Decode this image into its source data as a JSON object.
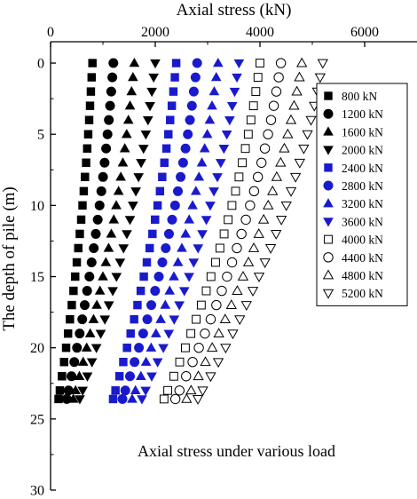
{
  "chart_data": {
    "type": "scatter",
    "xlabel": "Axial stress (kN)",
    "ylabel": "The depth of pile (m)",
    "xlim": [
      0,
      7000
    ],
    "ylim": [
      30,
      -1.5
    ],
    "x_axis_position": "top",
    "x_ticks": [
      0,
      2000,
      4000,
      6000
    ],
    "x_tick_labels": [
      "0",
      "2000",
      "4000",
      "6000"
    ],
    "y_ticks": [
      0,
      5,
      10,
      15,
      20,
      25,
      30
    ],
    "y_tick_labels": [
      "0",
      "5",
      "10",
      "15",
      "20",
      "25",
      "30"
    ],
    "annotation": "Axial stress under various load",
    "legend_position": "right",
    "grid": false,
    "depths": [
      0,
      1,
      2,
      3,
      4,
      5,
      6,
      7,
      8,
      9,
      10,
      11,
      12,
      13,
      14,
      15,
      16,
      17,
      18,
      19,
      20,
      21,
      22,
      23,
      23.6
    ],
    "series": [
      {
        "name": "800 kN",
        "marker": "square-filled",
        "color": "#000000",
        "values": [
          800,
          785,
          770,
          754,
          737,
          719,
          700,
          679,
          657,
          634,
          610,
          585,
          558,
          530,
          501,
          470,
          438,
          405,
          370,
          334,
          297,
          258,
          218,
          177,
          152
        ]
      },
      {
        "name": "1200 kN",
        "marker": "circle-filled",
        "color": "#000000",
        "values": [
          1200,
          1180,
          1159,
          1137,
          1113,
          1088,
          1061,
          1032,
          1002,
          970,
          936,
          901,
          864,
          825,
          784,
          742,
          698,
          652,
          605,
          556,
          505,
          453,
          399,
          343,
          309
        ]
      },
      {
        "name": "1600 kN",
        "marker": "triangle-up-filled",
        "color": "#000000",
        "values": [
          1600,
          1574,
          1547,
          1518,
          1487,
          1454,
          1418,
          1381,
          1341,
          1299,
          1255,
          1208,
          1160,
          1109,
          1056,
          1000,
          943,
          883,
          821,
          757,
          690,
          622,
          551,
          478,
          434
        ]
      },
      {
        "name": "2000 kN",
        "marker": "triangle-down-filled",
        "color": "#000000",
        "values": [
          2000,
          1969,
          1935,
          1899,
          1861,
          1820,
          1776,
          1730,
          1681,
          1629,
          1574,
          1517,
          1457,
          1394,
          1328,
          1259,
          1188,
          1114,
          1037,
          958,
          875,
          791,
          703,
          613,
          558
        ]
      },
      {
        "name": "2400 kN",
        "marker": "square-filled",
        "color": "#1a1acd",
        "values": [
          2400,
          2374,
          2346,
          2316,
          2284,
          2250,
          2213,
          2174,
          2133,
          2090,
          2044,
          1996,
          1946,
          1893,
          1839,
          1781,
          1722,
          1660,
          1596,
          1529,
          1460,
          1389,
          1316,
          1240,
          1194
        ]
      },
      {
        "name": "2800 kN",
        "marker": "circle-filled",
        "color": "#1a1acd",
        "values": [
          2800,
          2769,
          2736,
          2700,
          2662,
          2622,
          2578,
          2532,
          2484,
          2432,
          2378,
          2322,
          2262,
          2200,
          2135,
          2068,
          1997,
          1924,
          1848,
          1769,
          1688,
          1604,
          1517,
          1428,
          1373
        ]
      },
      {
        "name": "3200 kN",
        "marker": "triangle-up-filled",
        "color": "#1a1acd",
        "values": [
          3200,
          3165,
          3126,
          3085,
          3041,
          2994,
          2944,
          2891,
          2835,
          2776,
          2713,
          2648,
          2580,
          2508,
          2434,
          2356,
          2275,
          2191,
          2104,
          2014,
          1921,
          1824,
          1725,
          1622,
          1559
        ]
      },
      {
        "name": "3600 kN",
        "marker": "triangle-down-filled",
        "color": "#1a1acd",
        "values": [
          3600,
          3560,
          3517,
          3470,
          3421,
          3367,
          3311,
          3251,
          3187,
          3120,
          3050,
          2976,
          2899,
          2818,
          2734,
          2646,
          2555,
          2460,
          2361,
          2259,
          2154,
          2045,
          1932,
          1816,
          1745
        ]
      },
      {
        "name": "4000 kN",
        "marker": "square-open",
        "color": "#000000",
        "values": [
          4000,
          3962,
          3921,
          3876,
          3828,
          3777,
          3721,
          3662,
          3600,
          3534,
          3465,
          3392,
          3315,
          3235,
          3152,
          3064,
          2974,
          2879,
          2781,
          2680,
          2575,
          2466,
          2354,
          2238,
          2167
        ]
      },
      {
        "name": "4400 kN",
        "marker": "circle-open",
        "color": "#000000",
        "values": [
          4400,
          4358,
          4313,
          4264,
          4211,
          4154,
          4094,
          4029,
          3960,
          3888,
          3811,
          3731,
          3647,
          3559,
          3467,
          3371,
          3271,
          3167,
          3059,
          2948,
          2832,
          2713,
          2589,
          2462,
          2384
        ]
      },
      {
        "name": "4800 kN",
        "marker": "triangle-up-open",
        "color": "#000000",
        "values": [
          4800,
          4754,
          4705,
          4651,
          4593,
          4531,
          4465,
          4395,
          4320,
          4241,
          4157,
          4070,
          3978,
          3882,
          3781,
          3677,
          3567,
          3454,
          3336,
          3214,
          3088,
          2958,
          2823,
          2684,
          2598
        ]
      },
      {
        "name": "5200 kN",
        "marker": "triangle-down-open",
        "color": "#000000",
        "values": [
          5200,
          5150,
          5097,
          5038,
          4976,
          4908,
          4837,
          4760,
          4680,
          4594,
          4503,
          4409,
          4309,
          4205,
          4096,
          3983,
          3865,
          3742,
          3614,
          3482,
          3345,
          3204,
          3058,
          2907,
          2815
        ]
      }
    ]
  }
}
